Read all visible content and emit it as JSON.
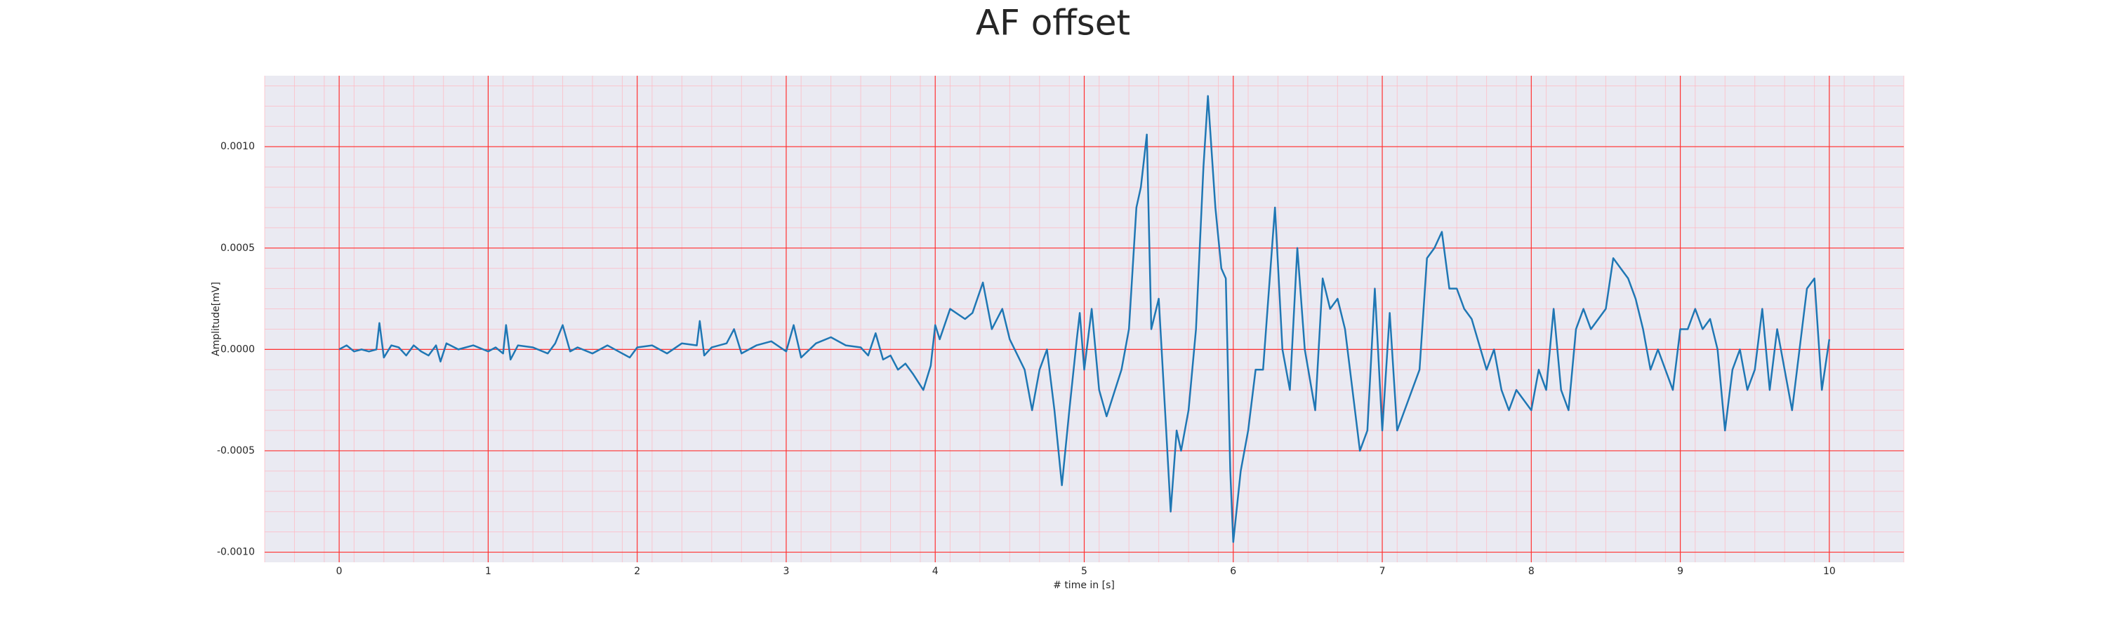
{
  "chart_data": {
    "type": "line",
    "title": "AF offset",
    "x_label": "# time in [s]",
    "y_label": "Amplitude[mV]",
    "color": "#1f77b4",
    "grid": true,
    "minor_grid": true,
    "xlim": [
      -0.5,
      10.5
    ],
    "xticks": [
      0,
      1,
      2,
      3,
      4,
      5,
      6,
      7,
      8,
      9,
      10
    ],
    "ylim": [
      -0.00105,
      0.00135
    ],
    "yticks": [
      {
        "value": -0.001,
        "label": "-0.0010"
      },
      {
        "value": -0.0005,
        "label": "-0.0005"
      },
      {
        "value": 0,
        "label": "0.0000"
      },
      {
        "value": 0.0005,
        "label": "0.0005"
      },
      {
        "value": 0.001,
        "label": "0.0010"
      }
    ],
    "x": [
      0,
      0.05,
      0.1,
      0.15,
      0.2,
      0.25,
      0.27,
      0.3,
      0.35,
      0.4,
      0.45,
      0.5,
      0.55,
      0.6,
      0.65,
      0.68,
      0.72,
      0.8,
      0.9,
      1.0,
      1.05,
      1.1,
      1.12,
      1.15,
      1.2,
      1.3,
      1.4,
      1.45,
      1.5,
      1.55,
      1.6,
      1.7,
      1.8,
      1.9,
      1.95,
      2.0,
      2.1,
      2.2,
      2.3,
      2.4,
      2.42,
      2.45,
      2.5,
      2.6,
      2.65,
      2.7,
      2.8,
      2.9,
      3.0,
      3.05,
      3.1,
      3.2,
      3.3,
      3.4,
      3.5,
      3.55,
      3.6,
      3.65,
      3.7,
      3.75,
      3.8,
      3.85,
      3.92,
      3.97,
      4.0,
      4.03,
      4.1,
      4.2,
      4.25,
      4.32,
      4.38,
      4.45,
      4.5,
      4.6,
      4.65,
      4.7,
      4.75,
      4.8,
      4.85,
      4.9,
      4.95,
      4.97,
      5.0,
      5.05,
      5.1,
      5.15,
      5.25,
      5.3,
      5.35,
      5.38,
      5.42,
      5.45,
      5.5,
      5.55,
      5.58,
      5.62,
      5.65,
      5.7,
      5.75,
      5.8,
      5.83,
      5.88,
      5.92,
      5.95,
      5.98,
      6.0,
      6.05,
      6.1,
      6.15,
      6.2,
      6.25,
      6.28,
      6.33,
      6.38,
      6.43,
      6.48,
      6.55,
      6.6,
      6.65,
      6.7,
      6.75,
      6.8,
      6.85,
      6.9,
      6.95,
      7.0,
      7.05,
      7.1,
      7.15,
      7.2,
      7.25,
      7.3,
      7.35,
      7.4,
      7.45,
      7.5,
      7.55,
      7.6,
      7.7,
      7.75,
      7.8,
      7.85,
      7.9,
      8.0,
      8.05,
      8.1,
      8.15,
      8.2,
      8.25,
      8.3,
      8.35,
      8.4,
      8.5,
      8.55,
      8.6,
      8.65,
      8.7,
      8.75,
      8.8,
      8.85,
      8.9,
      8.95,
      9.0,
      9.05,
      9.1,
      9.15,
      9.2,
      9.25,
      9.3,
      9.35,
      9.4,
      9.45,
      9.5,
      9.55,
      9.6,
      9.65,
      9.7,
      9.75,
      9.8,
      9.85,
      9.9,
      9.95,
      10
    ],
    "values": [
      0,
      2e-05,
      -1e-05,
      0,
      -1e-05,
      0,
      0.00013,
      -4e-05,
      2e-05,
      1e-05,
      -3e-05,
      2e-05,
      -1e-05,
      -3e-05,
      2e-05,
      -6e-05,
      3e-05,
      0,
      2e-05,
      -1e-05,
      1e-05,
      -2e-05,
      0.00012,
      -5e-05,
      2e-05,
      1e-05,
      -2e-05,
      3e-05,
      0.00012,
      -1e-05,
      1e-05,
      -2e-05,
      2e-05,
      -2e-05,
      -4e-05,
      1e-05,
      2e-05,
      -2e-05,
      3e-05,
      2e-05,
      0.00014,
      -3e-05,
      1e-05,
      3e-05,
      0.0001,
      -2e-05,
      2e-05,
      4e-05,
      -1e-05,
      0.00012,
      -4e-05,
      3e-05,
      6e-05,
      2e-05,
      1e-05,
      -3e-05,
      8e-05,
      -5e-05,
      -3e-05,
      -0.0001,
      -7e-05,
      -0.00012,
      -0.0002,
      -8e-05,
      0.00012,
      5e-05,
      0.0002,
      0.00015,
      0.00018,
      0.00033,
      0.0001,
      0.0002,
      5e-05,
      -0.0001,
      -0.0003,
      -0.0001,
      0,
      -0.0003,
      -0.00067,
      -0.0003,
      5e-05,
      0.00018,
      -0.0001,
      0.0002,
      -0.0002,
      -0.00033,
      -0.0001,
      0.0001,
      0.0007,
      0.0008,
      0.00106,
      0.0001,
      0.00025,
      -0.0004,
      -0.0008,
      -0.0004,
      -0.0005,
      -0.0003,
      0.0001,
      0.0009,
      0.00125,
      0.0007,
      0.0004,
      0.00035,
      -0.0006,
      -0.00095,
      -0.0006,
      -0.0004,
      -0.0001,
      -0.0001,
      0.0004,
      0.0007,
      0,
      -0.0002,
      0.0005,
      0,
      -0.0003,
      0.00035,
      0.0002,
      0.00025,
      0.0001,
      -0.0002,
      -0.0005,
      -0.0004,
      0.0003,
      -0.0004,
      0.00018,
      -0.0004,
      -0.0003,
      -0.0002,
      -0.0001,
      0.00045,
      0.0005,
      0.00058,
      0.0003,
      0.0003,
      0.0002,
      0.00015,
      -0.0001,
      0,
      -0.0002,
      -0.0003,
      -0.0002,
      -0.0003,
      -0.0001,
      -0.0002,
      0.0002,
      -0.0002,
      -0.0003,
      0.0001,
      0.0002,
      0.0001,
      0.0002,
      0.00045,
      0.0004,
      0.00035,
      0.00025,
      0.0001,
      -0.0001,
      0,
      -0.0001,
      -0.0002,
      0.0001,
      0.0001,
      0.0002,
      0.0001,
      0.00015,
      0,
      -0.0004,
      -0.0001,
      0,
      -0.0002,
      -0.0001,
      0.0002,
      -0.0002,
      0.0001,
      -0.0001,
      -0.0003,
      0,
      0.0003,
      0.00035,
      -0.0002,
      5e-05
    ]
  }
}
